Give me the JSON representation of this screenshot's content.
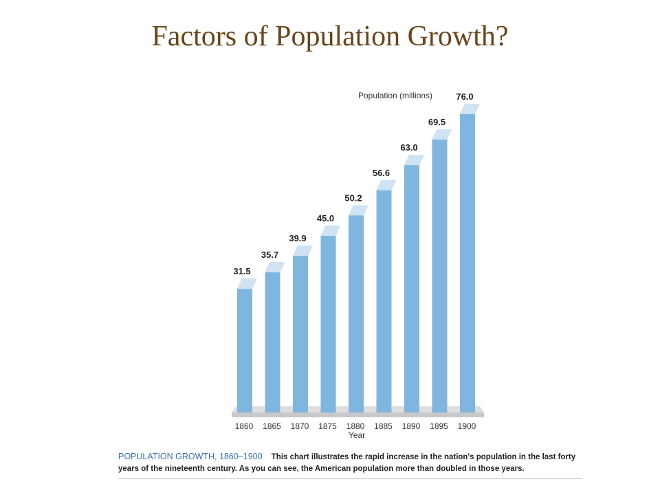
{
  "title": "Factors of Population Growth?",
  "caption": {
    "heading": "POPULATION GROWTH, 1860–1900",
    "body": "This chart illustrates the rapid increase in the nation's population in the last forty years of the nineteenth century. As you can see, the American population more than doubled in those years."
  },
  "colors": {
    "bar_front": "#7eb6e0",
    "bar_side": "#a9cdea",
    "bar_top": "#cfe3f3",
    "floor": "#c8c8c8",
    "title": "#6a4519",
    "caption_heading": "#3a6fb4"
  },
  "chart_data": {
    "type": "bar",
    "categories": [
      "1860",
      "1865",
      "1870",
      "1875",
      "1880",
      "1885",
      "1890",
      "1895",
      "1900"
    ],
    "values": [
      31.5,
      35.7,
      39.9,
      45.0,
      50.2,
      56.6,
      63.0,
      69.5,
      76.0
    ],
    "value_labels": [
      "31.5",
      "35.7",
      "39.9",
      "45.0",
      "50.2",
      "56.6",
      "63.0",
      "69.5",
      "76.0"
    ],
    "ylabel": "Population (millions)",
    "xlabel": "Year",
    "ylim": [
      0,
      76.0
    ],
    "grid": false,
    "legend": "none",
    "style": "3d"
  }
}
